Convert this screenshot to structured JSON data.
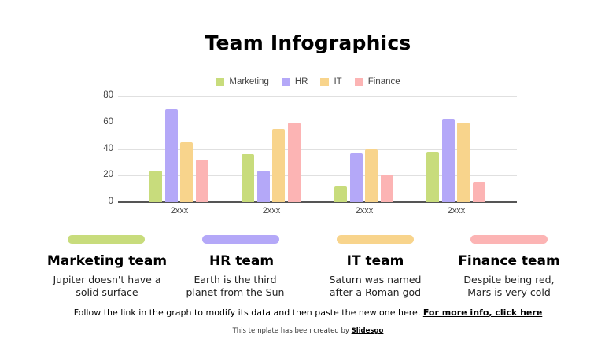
{
  "page": {
    "title": "Team Infographics"
  },
  "chart_data": {
    "type": "bar",
    "title": "",
    "xlabel": "",
    "ylabel": "",
    "ylim": [
      0,
      80
    ],
    "yticks": [
      0,
      20,
      40,
      60,
      80
    ],
    "grid": true,
    "legend_position": "top",
    "categories": [
      "2xxx",
      "2xxx",
      "2xxx",
      "2xxx"
    ],
    "series": [
      {
        "name": "Marketing",
        "color": "#c8dc7c",
        "values": [
          24,
          36,
          12,
          38
        ]
      },
      {
        "name": "HR",
        "color": "#b4a8f8",
        "values": [
          70,
          24,
          37,
          63
        ]
      },
      {
        "name": "IT",
        "color": "#f8d48c",
        "values": [
          45,
          55,
          40,
          60
        ]
      },
      {
        "name": "Finance",
        "color": "#fcb4b4",
        "values": [
          32,
          60,
          21,
          15
        ]
      }
    ]
  },
  "teams": [
    {
      "name": "Marketing team",
      "desc1": "Jupiter doesn't have a",
      "desc2": "solid surface",
      "color": "#c8dc7c"
    },
    {
      "name": "HR team",
      "desc1": "Earth is the third",
      "desc2": "planet from the Sun",
      "color": "#b4a8f8"
    },
    {
      "name": "IT team",
      "desc1": "Saturn was named",
      "desc2": "after a Roman god",
      "color": "#f8d48c"
    },
    {
      "name": "Finance team",
      "desc1": "Despite being red,",
      "desc2": "Mars is very cold",
      "color": "#fcb4b4"
    }
  ],
  "footer": {
    "text": "Follow the link in the graph to modify its data and then paste the new one here. ",
    "link": "For more info, click here"
  },
  "credit": {
    "text": "This template has been created by ",
    "link": "Slidesgo"
  }
}
